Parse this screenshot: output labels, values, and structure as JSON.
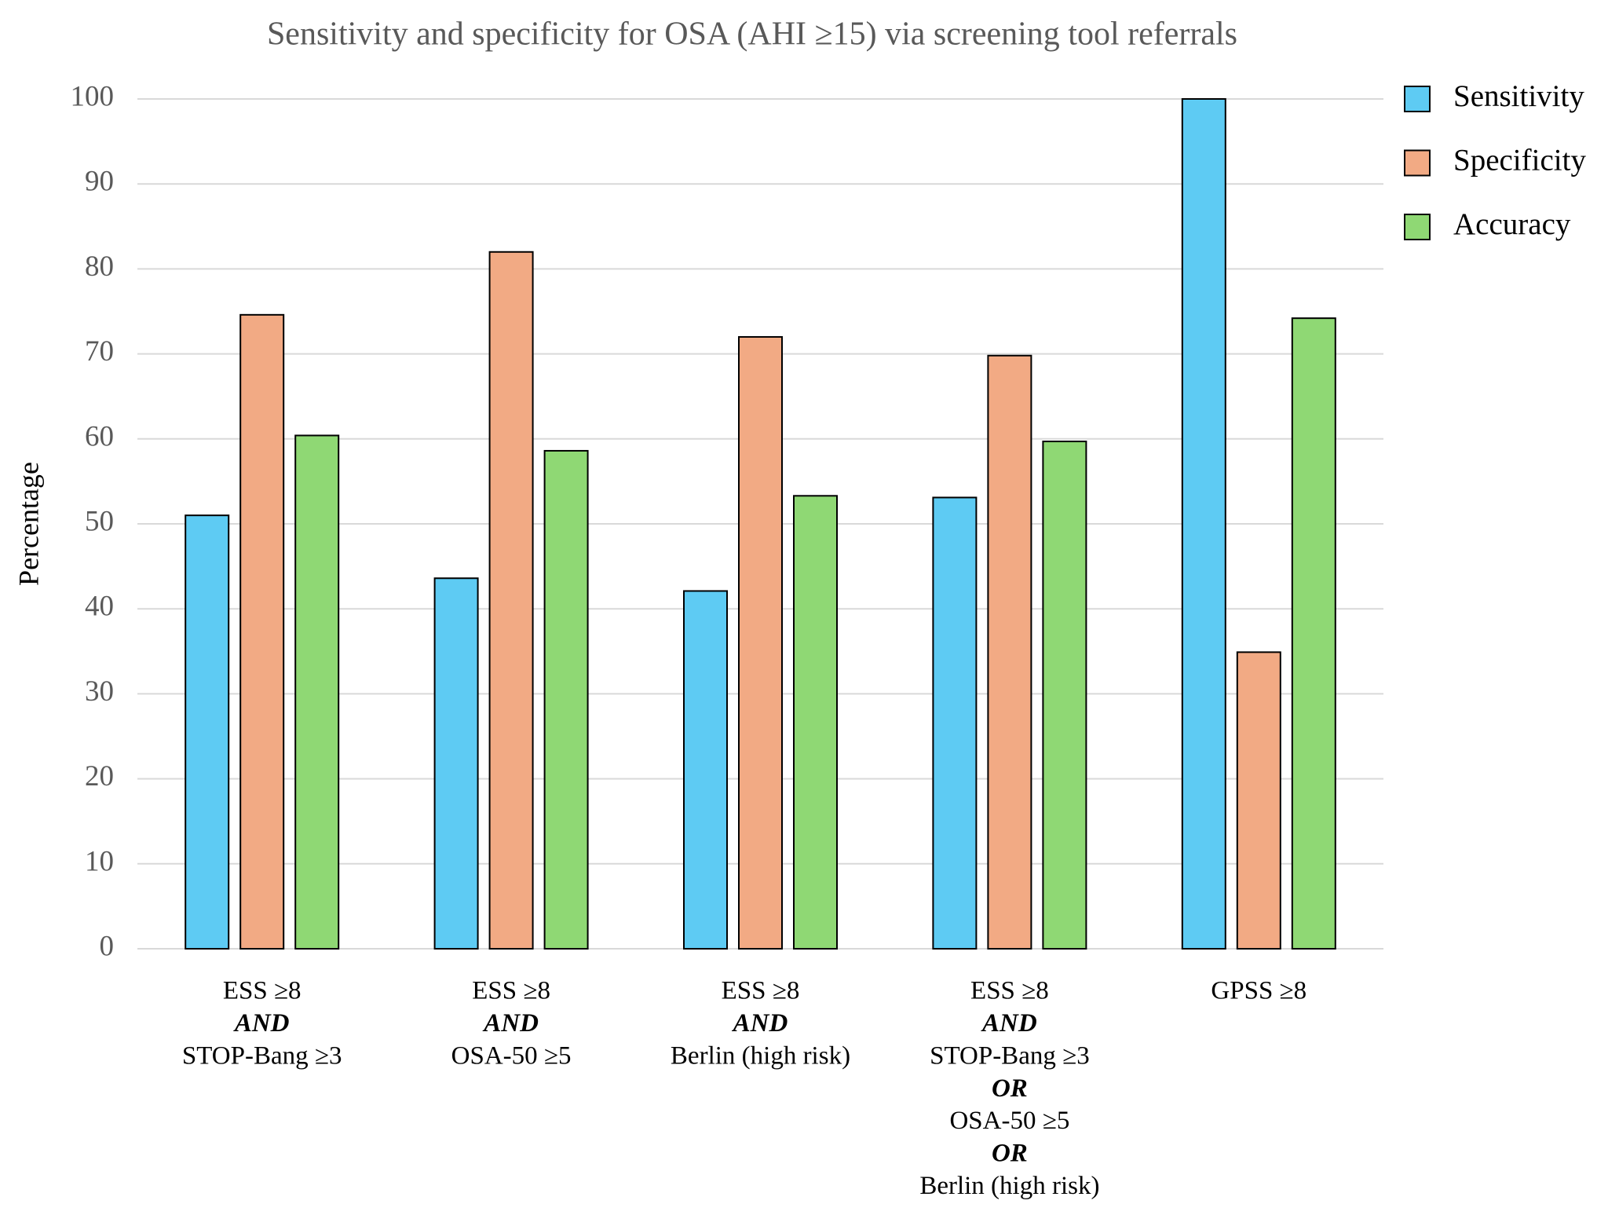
{
  "chart_data": {
    "type": "bar",
    "title": "Sensitivity and specificity for OSA (AHI ≥15) via screening tool referrals",
    "y_label": "Percentage",
    "categories": [
      [
        "ESS ≥8",
        "AND",
        "STOP-Bang ≥3"
      ],
      [
        "ESS ≥8",
        "AND",
        "OSA-50 ≥5"
      ],
      [
        "ESS ≥8",
        "AND",
        "Berlin (high risk)"
      ],
      [
        "ESS ≥8",
        "AND",
        "STOP-Bang ≥3",
        "OR",
        "OSA-50 ≥5",
        "OR",
        "Berlin (high risk)"
      ],
      [
        "GPSS ≥8"
      ]
    ],
    "series": [
      {
        "name": "Sensitivity",
        "color": "#5ecbf3",
        "values": [
          51,
          43.6,
          42.1,
          53.1,
          100
        ]
      },
      {
        "name": "Specificity",
        "color": "#f2aa84",
        "values": [
          74.6,
          82,
          72,
          69.8,
          34.9
        ]
      },
      {
        "name": "Accuracy",
        "color": "#8fd874",
        "values": [
          60.4,
          58.6,
          53.3,
          59.7,
          74.2
        ]
      }
    ],
    "ylim": [
      0,
      100
    ],
    "yticks": [
      0,
      10,
      20,
      30,
      40,
      50,
      60,
      70,
      80,
      90,
      100
    ],
    "grid": true,
    "legend": "right"
  }
}
